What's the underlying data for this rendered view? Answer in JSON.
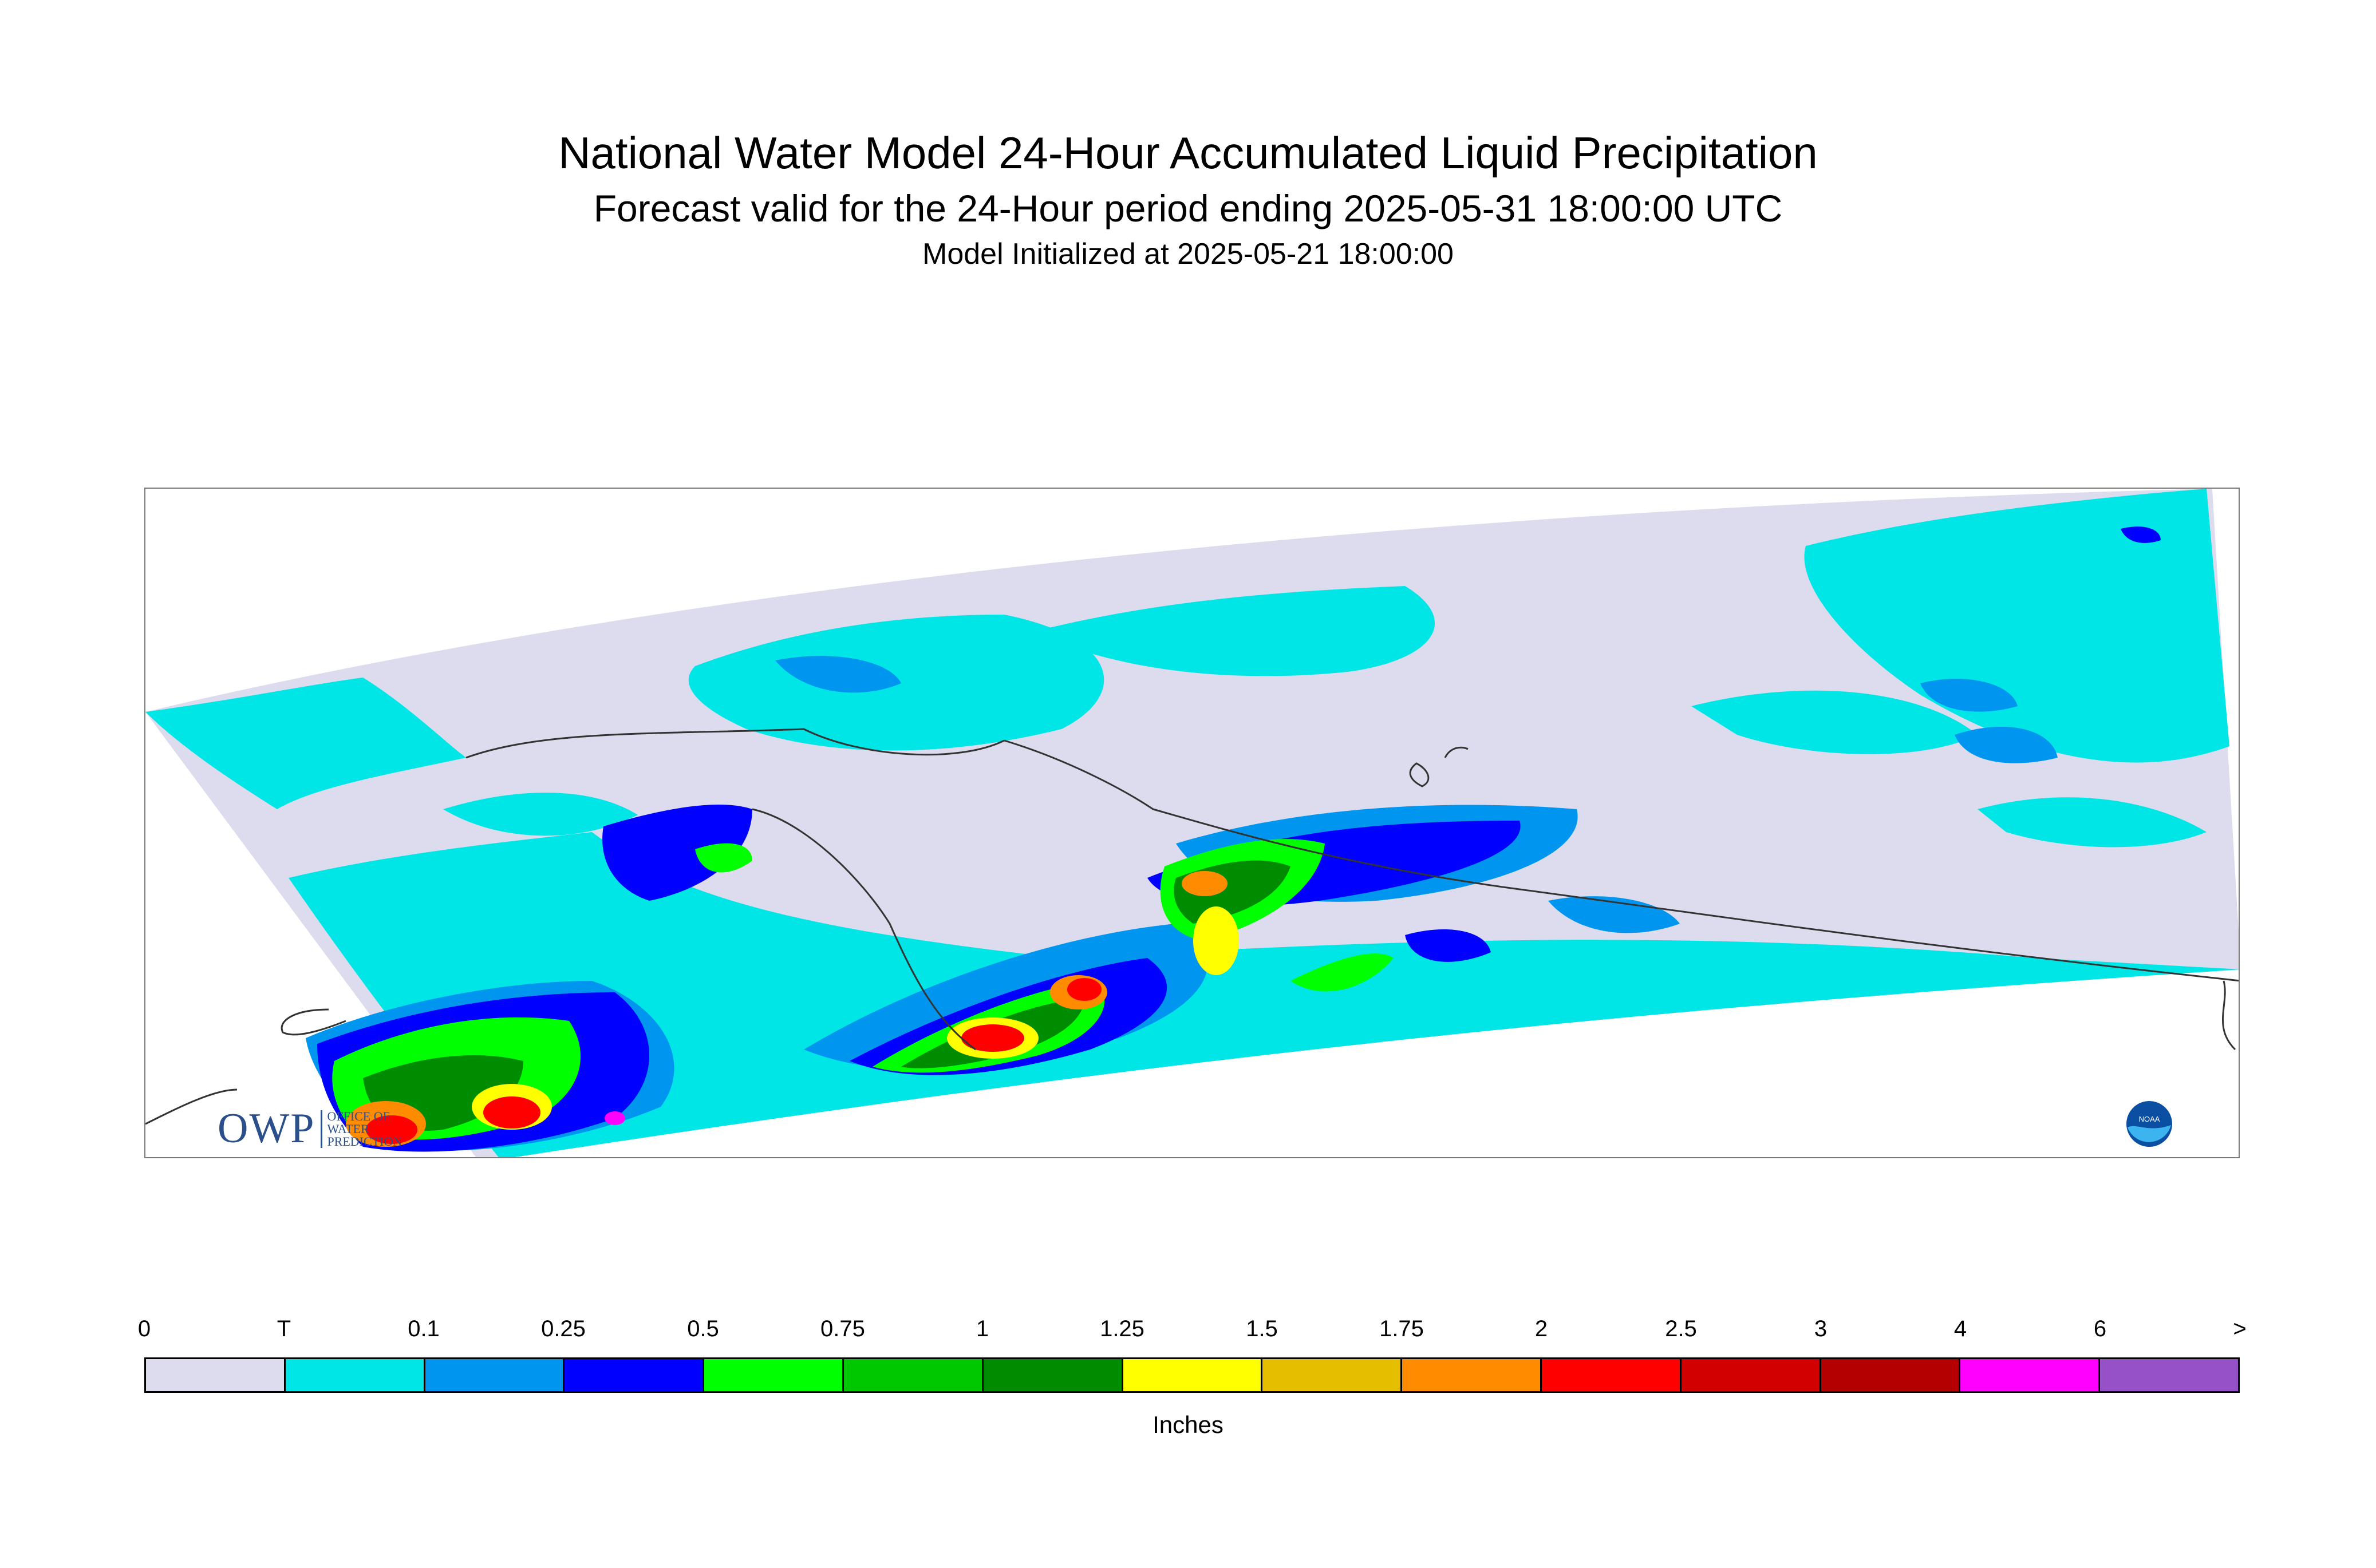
{
  "header": {
    "title": "National Water Model 24-Hour Accumulated Liquid Precipitation",
    "subtitle": "Forecast valid for the 24-Hour period ending 2025-05-31 18:00:00 UTC",
    "init_line": "Model Initialized at 2025-05-21 18:00:00"
  },
  "logos": {
    "owp_letters": "OWP",
    "owp_line1": "OFFICE OF",
    "owp_line2": "WATER",
    "owp_line3": "PREDICTION",
    "noaa_text": "NOAA"
  },
  "legend": {
    "tick_labels": [
      "0",
      "T",
      "0.1",
      "0.25",
      "0.5",
      "0.75",
      "1",
      "1.25",
      "1.5",
      "1.75",
      "2",
      "2.5",
      "3",
      "4",
      "6",
      ">"
    ],
    "colors": [
      "#dcdcee",
      "#00e6e6",
      "#0096f0",
      "#0000ff",
      "#00ff00",
      "#00c800",
      "#008c00",
      "#ffff00",
      "#e6be00",
      "#ff8c00",
      "#ff0000",
      "#d20000",
      "#b40000",
      "#ff00ff",
      "#9650c8"
    ],
    "units": "Inches"
  },
  "map_colors": {
    "land_none": "#dcdcee",
    "trace": "#00e6e6",
    "light": "#0096f0",
    "medium": "#0000ff",
    "green": "#00ff00",
    "darkgreen": "#008c00",
    "yellow": "#ffff00",
    "orange": "#ff8c00",
    "red": "#ff0000",
    "magenta": "#ff00ff",
    "coast": "#333333"
  }
}
